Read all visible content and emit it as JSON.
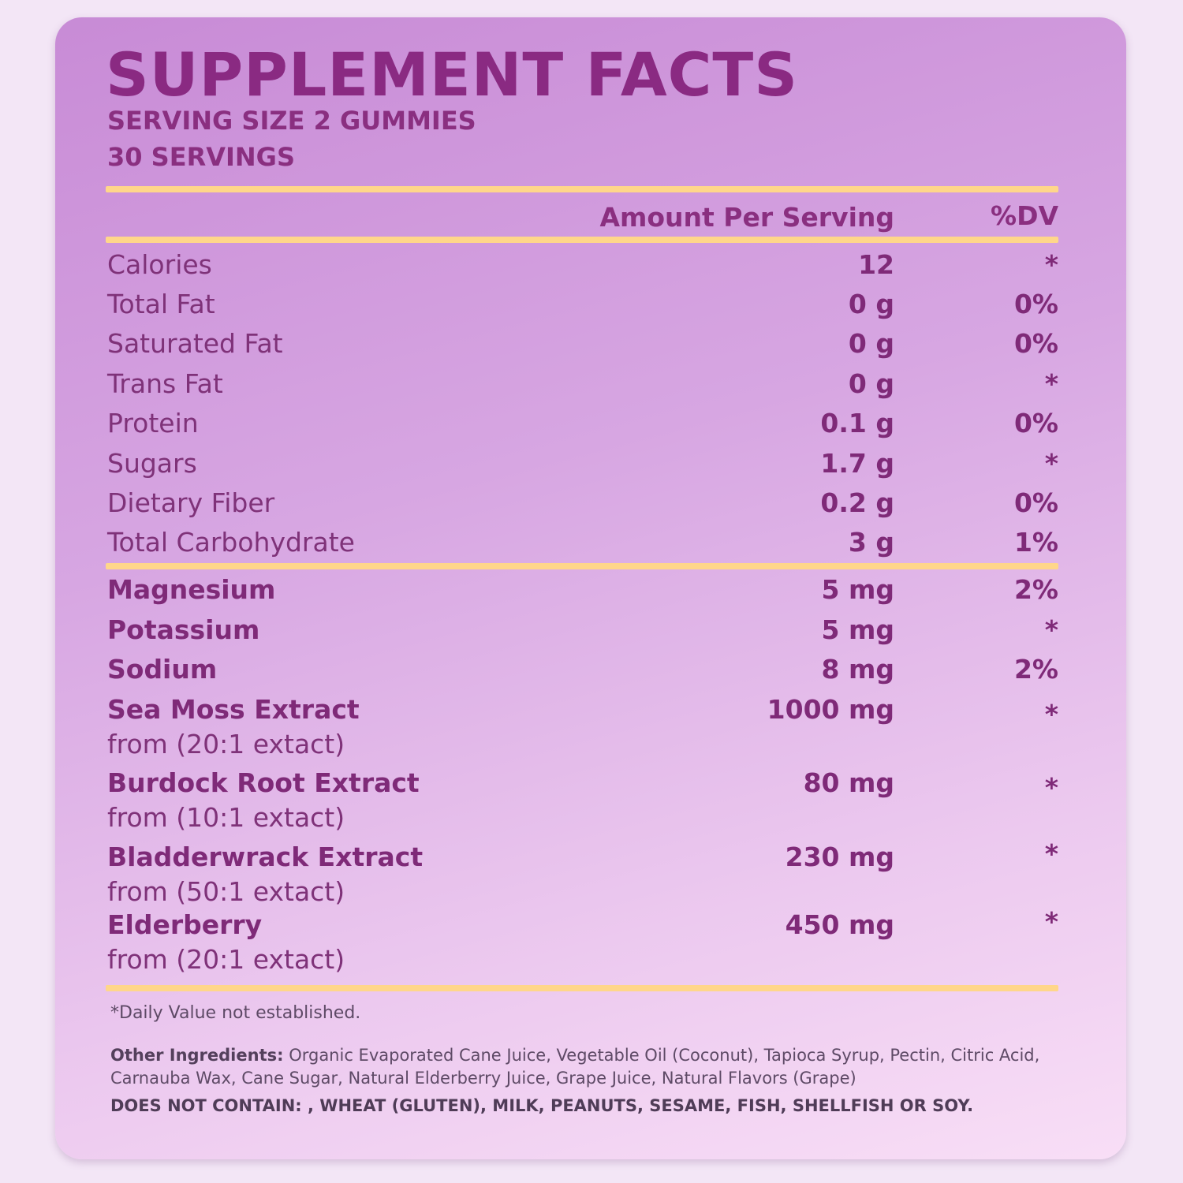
{
  "header": {
    "title": "SUPPLEMENT FACTS",
    "serving_size": "SERVING SIZE 2 GUMMIES",
    "servings": "30 SERVINGS"
  },
  "columns": {
    "amount": "Amount Per Serving",
    "dv": "%DV"
  },
  "nutrients": [
    {
      "label": "Calories",
      "amount": "12",
      "dv": "*"
    },
    {
      "label": "Total Fat",
      "amount": "0 g",
      "dv": "0%"
    },
    {
      "label": "Saturated Fat",
      "amount": "0 g",
      "dv": "0%"
    },
    {
      "label": "Trans Fat",
      "amount": "0 g",
      "dv": "*"
    },
    {
      "label": "Protein",
      "amount": "0.1 g",
      "dv": "0%"
    },
    {
      "label": "Sugars",
      "amount": "1.7 g",
      "dv": "*"
    },
    {
      "label": "Dietary Fiber",
      "amount": "0.2 g",
      "dv": "0%"
    },
    {
      "label": "Total Carbohydrate",
      "amount": "3 g",
      "dv": "1%"
    }
  ],
  "minerals": [
    {
      "label": "Magnesium",
      "amount": "5 mg",
      "dv": "2%"
    },
    {
      "label": "Potassium",
      "amount": "5 mg",
      "dv": "*"
    },
    {
      "label": "Sodium",
      "amount": "8 mg",
      "dv": "2%"
    }
  ],
  "extracts": [
    {
      "label": "Sea Moss Extract",
      "detail": "from (20:1 extact)",
      "amount": "1000 mg",
      "dv": "*"
    },
    {
      "label": "Burdock Root Extract",
      "detail": "from (10:1 extact)",
      "amount": "80 mg",
      "dv": "*"
    },
    {
      "label": "Bladderwrack Extract",
      "detail": "from (50:1 extact)",
      "amount": "230 mg",
      "dv": "*"
    },
    {
      "label": "Elderberry",
      "detail": "from (20:1 extact)",
      "amount": "450 mg",
      "dv": "*"
    }
  ],
  "footer": {
    "dv_note": "*Daily Value not established.",
    "other_label": "Other Ingredients:",
    "other_text": " Organic Evaporated Cane Juice, Vegetable Oil (Coconut), Tapioca Syrup, Pectin, Citric Acid, Carnauba Wax, Cane Sugar, Natural Elderberry Juice, Grape Juice, Natural Flavors (Grape)",
    "does_not_contain": "DOES NOT CONTAIN: , WHEAT (GLUTEN), MILK, PEANUTS, SESAME, FISH, SHELLFISH OR SOY."
  },
  "colors": {
    "accent_rule": "#ffd68a",
    "title_text": "#8a2a82",
    "panel_top": "#c88bd6",
    "panel_bottom": "#f8def6"
  }
}
